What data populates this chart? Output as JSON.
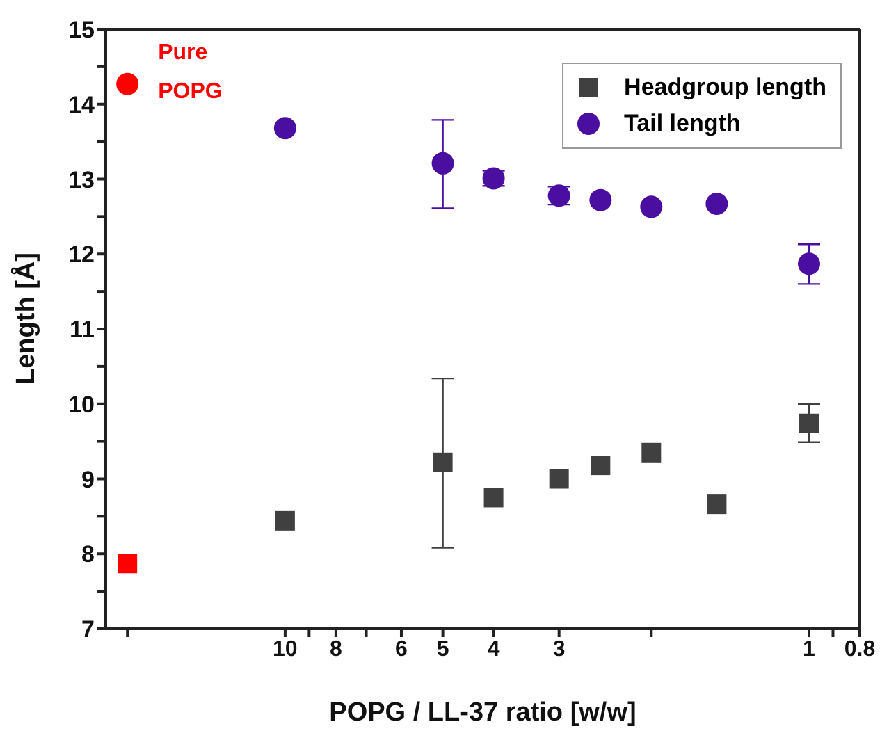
{
  "chart_data": {
    "type": "scatter",
    "xlabel": "POPG / LL-37 ratio [w/w]",
    "ylabel": "Length [Å]",
    "log": "x",
    "xlim": [
      22,
      0.8
    ],
    "xticks": [
      {
        "value": 20,
        "label": null
      },
      10,
      {
        "value": 9,
        "label": null
      },
      8,
      {
        "value": 7,
        "label": null
      },
      6,
      5,
      4,
      3,
      {
        "value": 2,
        "label": null
      },
      1,
      {
        "value": 0.9,
        "label": null
      },
      0.8
    ],
    "ylim": [
      7,
      15
    ],
    "yticks": [
      7,
      {
        "value": 7.5,
        "label": null
      },
      8,
      {
        "value": 8.5,
        "label": null
      },
      9,
      {
        "value": 9.5,
        "label": null
      },
      10,
      {
        "value": 10.5,
        "label": null
      },
      11,
      {
        "value": 11.5,
        "label": null
      },
      12,
      {
        "value": 12.5,
        "label": null
      },
      13,
      {
        "value": 13.5,
        "label": null
      },
      14,
      {
        "value": 14.5,
        "label": null
      },
      15
    ],
    "grid": false,
    "legend": "top right",
    "annotations": [
      {
        "text": "Pure POPG",
        "x": 20,
        "y": 14.3
      }
    ],
    "series": [
      {
        "name": "Headgroup length",
        "color": "#404040",
        "marker": "square",
        "x": [
          10,
          5,
          4,
          3,
          2.5,
          2,
          1.5,
          1
        ],
        "values": [
          8.44,
          9.22,
          8.75,
          9.0,
          9.18,
          9.35,
          8.66,
          9.74
        ],
        "errors": [
          null,
          [
            8.08,
            10.34
          ],
          null,
          null,
          null,
          null,
          null,
          [
            9.49,
            10.0
          ]
        ]
      },
      {
        "name": "Tail length",
        "color": "#4a0fa0",
        "marker": "circle",
        "x": [
          10,
          5,
          4,
          3,
          2.5,
          2,
          1.5,
          1
        ],
        "values": [
          13.68,
          13.21,
          13.01,
          12.78,
          12.72,
          12.63,
          12.67,
          11.87
        ],
        "errors": [
          null,
          [
            12.61,
            13.79
          ],
          0.1,
          0.12,
          null,
          null,
          null,
          [
            11.6,
            12.13
          ]
        ]
      },
      {
        "color": "#ff0000",
        "marker": "circle",
        "x": [
          20
        ],
        "values": [
          14.27
        ]
      },
      {
        "color": "#ff0000",
        "marker": "square",
        "x": [
          20
        ],
        "values": [
          7.87
        ]
      }
    ]
  }
}
